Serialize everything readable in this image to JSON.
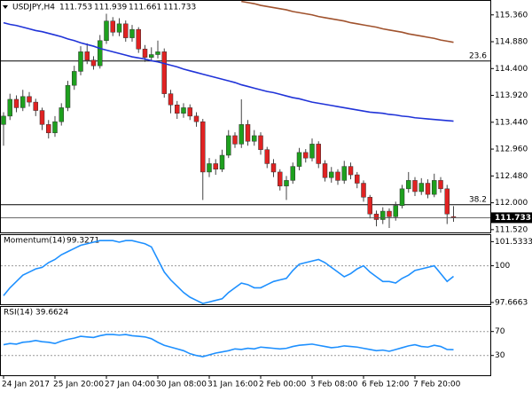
{
  "chart_data": [
    {
      "type": "candlestick",
      "title": "USDJPY,H4",
      "categories": [
        "24 Jan 2017",
        null,
        null,
        null,
        null,
        null,
        null,
        null,
        "25 Jan 20:00",
        null,
        null,
        null,
        null,
        null,
        null,
        null,
        "27 Jan 04:00",
        null,
        null,
        null,
        null,
        null,
        null,
        null,
        "30 Jan 08:00",
        null,
        null,
        null,
        null,
        null,
        null,
        null,
        "31 Jan 16:00",
        null,
        null,
        null,
        null,
        null,
        null,
        null,
        "2 Feb 00:00",
        null,
        null,
        null,
        null,
        null,
        null,
        null,
        "3 Feb 08:00",
        null,
        null,
        null,
        null,
        null,
        null,
        null,
        "6 Feb 12:00",
        null,
        null,
        null,
        null,
        null,
        null,
        null,
        "7 Feb 20:00",
        null,
        null,
        null,
        null,
        null,
        null
      ],
      "open": [
        113.4,
        113.55,
        113.85,
        113.7,
        113.9,
        113.8,
        113.65,
        113.4,
        113.25,
        113.45,
        113.7,
        114.1,
        114.35,
        114.7,
        114.55,
        114.45,
        114.9,
        115.25,
        115.05,
        115.2,
        114.95,
        115.1,
        114.75,
        114.6,
        114.65,
        114.7,
        113.95,
        113.75,
        113.6,
        113.7,
        113.55,
        113.45,
        112.55,
        112.7,
        112.6,
        112.85,
        113.2,
        113.05,
        113.4,
        113.1,
        113.2,
        112.95,
        112.7,
        112.55,
        112.3,
        112.4,
        112.65,
        112.9,
        112.8,
        113.05,
        112.7,
        112.45,
        112.55,
        112.4,
        112.65,
        112.5,
        112.35,
        112.1,
        111.8,
        111.7,
        111.85,
        111.75,
        111.95,
        112.25,
        112.4,
        112.2,
        112.35,
        112.15,
        112.4,
        112.25,
        111.753
      ],
      "high": [
        113.62,
        113.95,
        113.92,
        114.02,
        113.98,
        113.86,
        113.7,
        113.48,
        113.55,
        113.78,
        114.18,
        114.45,
        114.8,
        114.85,
        114.62,
        115.0,
        115.38,
        115.32,
        115.3,
        115.26,
        115.18,
        115.14,
        114.82,
        114.78,
        114.9,
        114.76,
        114.02,
        113.82,
        113.78,
        113.76,
        113.62,
        113.5,
        112.8,
        112.78,
        112.95,
        113.3,
        113.26,
        113.85,
        113.48,
        113.3,
        113.26,
        113.0,
        112.78,
        112.6,
        112.48,
        112.72,
        112.98,
        112.96,
        113.15,
        113.1,
        112.76,
        112.64,
        112.6,
        112.75,
        112.72,
        112.55,
        112.4,
        112.14,
        111.86,
        111.92,
        111.9,
        112.02,
        112.32,
        112.55,
        112.46,
        112.44,
        112.42,
        112.52,
        112.46,
        112.32,
        111.939
      ],
      "low": [
        113.02,
        113.48,
        113.62,
        113.64,
        113.72,
        113.55,
        113.3,
        113.15,
        113.18,
        113.38,
        113.64,
        114.02,
        114.28,
        114.48,
        114.38,
        114.4,
        114.84,
        114.98,
        114.98,
        114.88,
        114.88,
        114.68,
        114.52,
        114.54,
        114.58,
        113.88,
        113.6,
        113.5,
        113.52,
        113.48,
        113.36,
        112.05,
        112.46,
        112.5,
        112.55,
        112.8,
        112.98,
        112.98,
        113.02,
        113.02,
        112.86,
        112.62,
        112.46,
        112.22,
        112.05,
        112.34,
        112.58,
        112.72,
        112.74,
        112.62,
        112.38,
        112.36,
        112.32,
        112.34,
        112.42,
        112.26,
        112.02,
        111.72,
        111.58,
        111.62,
        111.55,
        111.68,
        111.9,
        112.18,
        112.12,
        112.14,
        112.08,
        112.1,
        112.18,
        111.62,
        111.661
      ],
      "close": [
        113.55,
        113.85,
        113.7,
        113.9,
        113.8,
        113.65,
        113.4,
        113.25,
        113.45,
        113.7,
        114.1,
        114.35,
        114.7,
        114.55,
        114.45,
        114.9,
        115.25,
        115.05,
        115.2,
        114.95,
        115.1,
        114.75,
        114.6,
        114.65,
        114.7,
        113.95,
        113.75,
        113.6,
        113.7,
        113.55,
        113.45,
        112.55,
        112.7,
        112.6,
        112.85,
        113.2,
        113.05,
        113.4,
        113.1,
        113.2,
        112.95,
        112.7,
        112.55,
        112.3,
        112.4,
        112.65,
        112.9,
        112.8,
        113.05,
        112.7,
        112.45,
        112.55,
        112.4,
        112.65,
        112.5,
        112.35,
        112.1,
        111.8,
        111.7,
        111.85,
        111.75,
        111.95,
        112.25,
        112.4,
        112.2,
        112.35,
        112.15,
        112.4,
        112.25,
        111.8,
        111.733
      ],
      "up_color": "#1ea01e",
      "down_color": "#e02222",
      "overlays": [
        {
          "color": "#2033d8",
          "values": [
            115.22,
            115.19,
            115.17,
            115.14,
            115.11,
            115.08,
            115.06,
            115.03,
            115.0,
            114.97,
            114.93,
            114.9,
            114.86,
            114.83,
            114.8,
            114.76,
            114.73,
            114.7,
            114.67,
            114.64,
            114.61,
            114.59,
            114.57,
            114.54,
            114.52,
            114.49,
            114.46,
            114.43,
            114.39,
            114.36,
            114.33,
            114.3,
            114.27,
            114.24,
            114.21,
            114.18,
            114.15,
            114.11,
            114.08,
            114.05,
            114.02,
            113.99,
            113.97,
            113.94,
            113.91,
            113.88,
            113.86,
            113.83,
            113.8,
            113.78,
            113.76,
            113.74,
            113.72,
            113.7,
            113.68,
            113.66,
            113.64,
            113.62,
            113.61,
            113.6,
            113.58,
            113.57,
            113.55,
            113.54,
            113.52,
            113.51,
            113.5,
            113.49,
            113.48,
            113.47,
            113.46
          ]
        },
        {
          "color": "#a0522d",
          "values": [
            null,
            null,
            null,
            null,
            null,
            null,
            null,
            null,
            null,
            null,
            null,
            null,
            null,
            null,
            null,
            null,
            null,
            null,
            null,
            null,
            null,
            null,
            null,
            null,
            null,
            null,
            null,
            null,
            null,
            null,
            null,
            null,
            null,
            null,
            null,
            null,
            null,
            115.6,
            115.58,
            115.56,
            115.53,
            115.51,
            115.49,
            115.47,
            115.45,
            115.42,
            115.4,
            115.38,
            115.36,
            115.33,
            115.31,
            115.29,
            115.27,
            115.25,
            115.22,
            115.2,
            115.18,
            115.16,
            115.14,
            115.11,
            115.09,
            115.07,
            115.05,
            115.02,
            115.0,
            114.98,
            114.96,
            114.94,
            114.91,
            114.89,
            114.87
          ]
        }
      ],
      "levels": [
        {
          "label": "23.6",
          "value": 114.535
        },
        {
          "label": "38.2",
          "value": 111.965
        }
      ],
      "ylim": [
        111.47,
        115.61
      ],
      "yticks": [
        {
          "value": 115.36,
          "label": "115.360"
        },
        {
          "value": 114.88,
          "label": "114.880"
        },
        {
          "value": 114.4,
          "label": "114.400"
        },
        {
          "value": 113.92,
          "label": "113.920"
        },
        {
          "value": 113.44,
          "label": "113.440"
        },
        {
          "value": 112.96,
          "label": "112.960"
        },
        {
          "value": 112.48,
          "label": "112.480"
        },
        {
          "value": 112.0,
          "label": "112.000"
        },
        {
          "value": 111.52,
          "label": "111.520"
        }
      ]
    },
    {
      "type": "line",
      "title": "Momentum(14)",
      "color": "#1e90ff",
      "values": [
        98.1,
        98.6,
        99.0,
        99.4,
        99.6,
        99.8,
        99.9,
        100.2,
        100.4,
        100.7,
        100.9,
        101.1,
        101.3,
        101.4,
        101.5,
        101.6,
        101.6,
        101.6,
        101.5,
        101.6,
        101.6,
        101.5,
        101.4,
        101.2,
        100.4,
        99.6,
        99.1,
        98.7,
        98.3,
        98.0,
        97.8,
        97.6,
        97.7,
        97.8,
        97.9,
        98.3,
        98.6,
        98.9,
        98.8,
        98.6,
        98.6,
        98.8,
        99.0,
        99.1,
        99.2,
        99.7,
        100.1,
        100.2,
        100.3,
        100.4,
        100.2,
        99.9,
        99.6,
        99.3,
        99.5,
        99.8,
        100.0,
        99.6,
        99.3,
        99.0,
        99.0,
        98.9,
        99.2,
        99.4,
        99.7,
        99.8,
        99.9,
        100.0,
        99.5,
        99.0,
        99.3271
      ],
      "ylim": [
        97.55,
        101.95
      ],
      "yticks": [
        101.5333,
        100,
        97.6663
      ],
      "levels": [
        100
      ]
    },
    {
      "type": "line",
      "title": "RSI(14)",
      "color": "#1e90ff",
      "values": [
        48,
        50,
        49,
        52,
        53,
        55,
        53,
        52,
        50,
        54,
        57,
        59,
        62,
        61,
        60,
        63,
        65,
        65,
        64,
        65,
        63,
        62,
        61,
        58,
        52,
        47,
        44,
        41,
        38,
        33,
        30,
        28,
        31,
        34,
        36,
        38,
        41,
        40,
        42,
        41,
        44,
        43,
        42,
        41,
        42,
        45,
        47,
        48,
        49,
        47,
        45,
        43,
        44,
        46,
        45,
        44,
        42,
        40,
        38,
        39,
        37,
        40,
        43,
        46,
        48,
        45,
        44,
        47,
        45,
        40,
        39.6624
      ],
      "ylim": [
        -3,
        111
      ],
      "yticks": [
        70,
        30
      ],
      "levels": [
        70,
        30
      ]
    }
  ]
}
